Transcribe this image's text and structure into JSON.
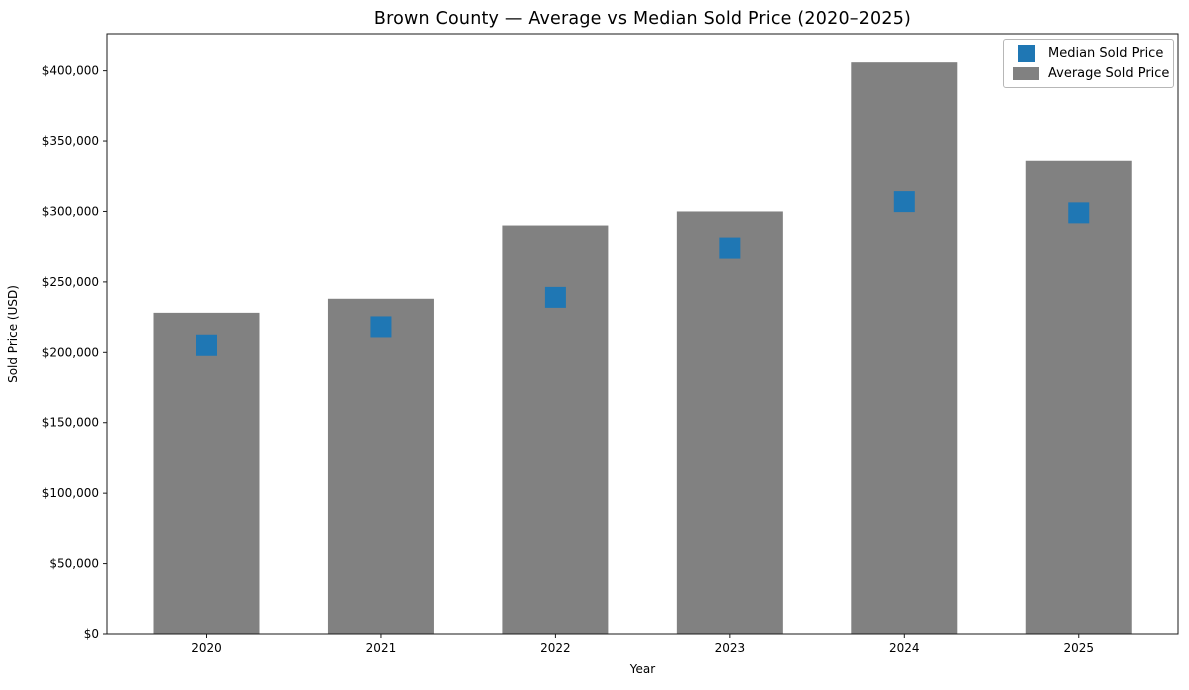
{
  "figure": {
    "title": "Brown County — Average vs Median Sold Price (2020–2025)",
    "xlabel": "Year",
    "ylabel": "Sold Price (USD)"
  },
  "legend": {
    "entries": [
      {
        "label": "Median Sold Price",
        "swatch": "square-marker",
        "color": "#1f77b4"
      },
      {
        "label": "Average Sold Price",
        "swatch": "bar-patch",
        "color": "#818181"
      }
    ]
  },
  "chart_data": {
    "type": "bar",
    "title": "Brown County — Average vs Median Sold Price (2020–2025)",
    "xlabel": "Year",
    "ylabel": "Sold Price (USD)",
    "categories": [
      "2020",
      "2021",
      "2022",
      "2023",
      "2024",
      "2025"
    ],
    "series": [
      {
        "name": "Average Sold Price",
        "render": "bar",
        "color": "#818181",
        "values": [
          228000,
          238000,
          290000,
          300000,
          406000,
          336000
        ]
      },
      {
        "name": "Median Sold Price",
        "render": "square-scatter",
        "color": "#1f77b4",
        "values": [
          205000,
          218000,
          239000,
          274000,
          307000,
          299000
        ]
      }
    ],
    "ylim": [
      0,
      426000
    ],
    "ytick_values": [
      0,
      50000,
      100000,
      150000,
      200000,
      250000,
      300000,
      350000,
      400000
    ],
    "ytick_labels": [
      "$0",
      "$50,000",
      "$100,000",
      "$150,000",
      "$200,000",
      "$250,000",
      "$300,000",
      "$350,000",
      "$400,000"
    ],
    "grid": false,
    "legend_position": "upper right"
  },
  "colors": {
    "bar": "#818181",
    "marker": "#1f77b4",
    "spine": "#1a1a1a",
    "background": "#ffffff"
  }
}
